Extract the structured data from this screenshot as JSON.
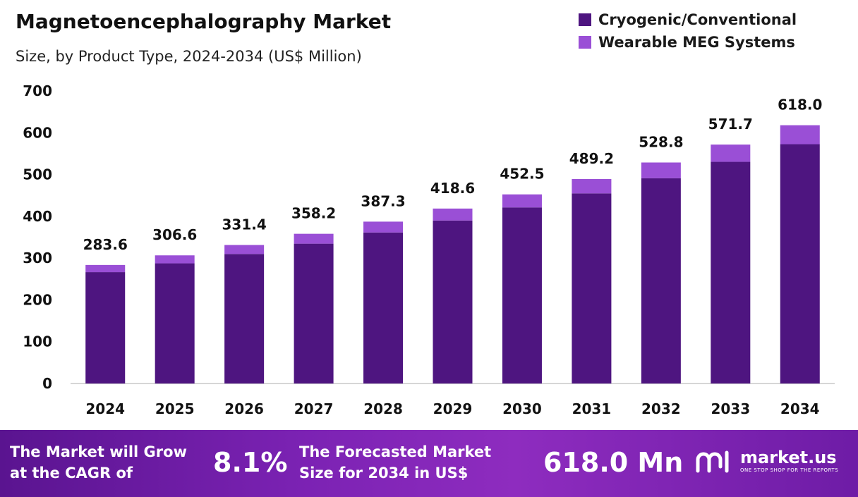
{
  "title": "Magnetoencephalography Market",
  "subtitle": "Size, by Product Type, 2024-2034 (US$ Million)",
  "colors": {
    "cryogenic": "#4e1580",
    "wearable": "#9a4fd6",
    "axis": "#c8c8c8"
  },
  "chart_data": {
    "type": "bar",
    "stacked": true,
    "categories": [
      "2024",
      "2025",
      "2026",
      "2027",
      "2028",
      "2029",
      "2030",
      "2031",
      "2032",
      "2033",
      "2034"
    ],
    "series": [
      {
        "name": "Cryogenic/Conventional",
        "values": [
          266.4,
          287.5,
          309.9,
          334.6,
          361.4,
          390.0,
          421.3,
          454.9,
          491.2,
          530.4,
          572.6
        ]
      },
      {
        "name": "Wearable MEG Systems",
        "values": [
          17.2,
          19.1,
          21.5,
          23.6,
          25.9,
          28.6,
          31.2,
          34.3,
          37.6,
          41.3,
          45.4
        ]
      }
    ],
    "totals": [
      "283.6",
      "306.6",
      "331.4",
      "358.2",
      "387.3",
      "418.6",
      "452.5",
      "489.2",
      "528.8",
      "571.7",
      "618.0"
    ],
    "yticks": [
      "0",
      "100",
      "200",
      "300",
      "400",
      "500",
      "600",
      "700"
    ],
    "ylim": [
      0,
      700
    ],
    "legend_position": "top-right",
    "grid": false
  },
  "footer": {
    "cagr_text_1": "The Market will Grow",
    "cagr_text_2": "at the CAGR of",
    "cagr_value": "8.1%",
    "forecast_text_1": "The Forecasted Market",
    "forecast_text_2": "Size for 2034 in US$",
    "forecast_value": "618.0 Mn",
    "logo_icon": "market-us-logo-icon",
    "logo_name": "market.us",
    "logo_tagline": "ONE STOP SHOP FOR THE REPORTS"
  }
}
